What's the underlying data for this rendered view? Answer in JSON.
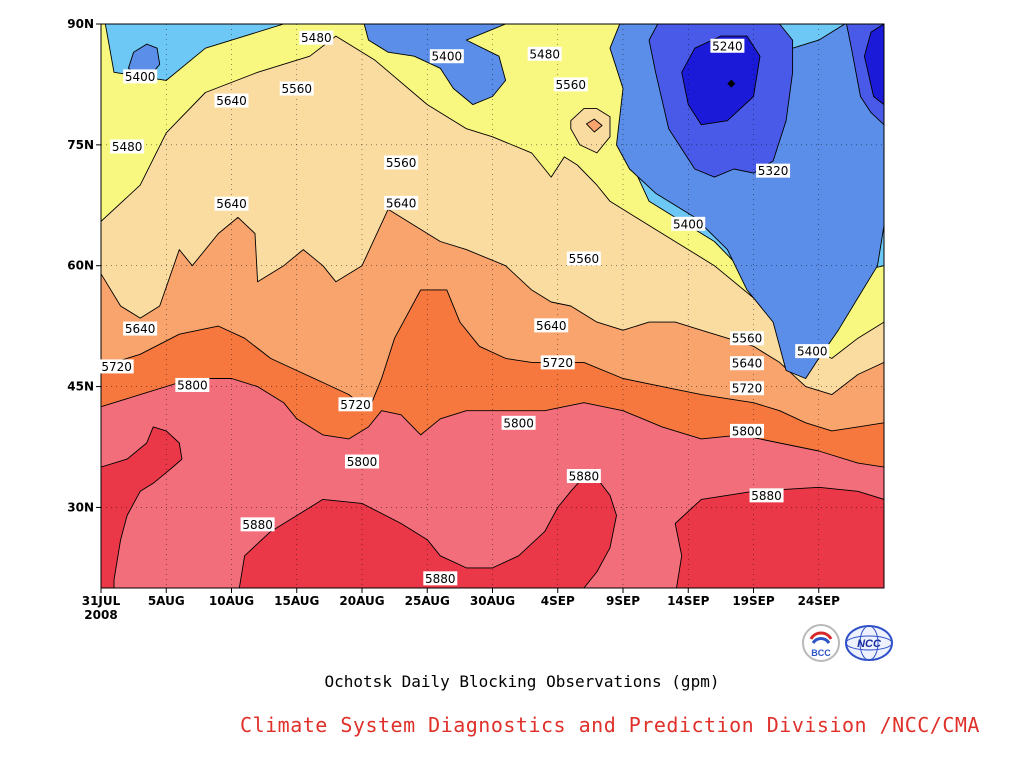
{
  "chart_data": {
    "type": "contour",
    "title": "Ochotsk Daily Blocking Observations (gpm)",
    "credit": "Climate System Diagnostics and Prediction Division /NCC/CMA",
    "logos": [
      "BCC",
      "NCC"
    ],
    "x_start": "31JUL 2008",
    "x_end": "29SEP 2008",
    "y_range": [
      "20N",
      "90N"
    ],
    "x_ticks": [
      {
        "label": "31JUL",
        "sub": "2008",
        "day": 0
      },
      {
        "label": "5AUG",
        "day": 5
      },
      {
        "label": "10AUG",
        "day": 10
      },
      {
        "label": "15AUG",
        "day": 15
      },
      {
        "label": "20AUG",
        "day": 20
      },
      {
        "label": "25AUG",
        "day": 25
      },
      {
        "label": "30AUG",
        "day": 30
      },
      {
        "label": "4SEP",
        "day": 35
      },
      {
        "label": "9SEP",
        "day": 40
      },
      {
        "label": "14SEP",
        "day": 45
      },
      {
        "label": "19SEP",
        "day": 50
      },
      {
        "label": "24SEP",
        "day": 55
      }
    ],
    "y_ticks": [
      {
        "label": "30N",
        "lat": 30
      },
      {
        "label": "45N",
        "lat": 45
      },
      {
        "label": "60N",
        "lat": 60
      },
      {
        "label": "75N",
        "lat": 75
      },
      {
        "label": "90N",
        "lat": 90
      }
    ],
    "levels": [
      5240,
      5320,
      5400,
      5480,
      5560,
      5640,
      5720,
      5800,
      5880
    ],
    "colors": {
      "below_5240": "#1a1ad8",
      "5240_5320": "#4a5ae8",
      "5320_5400": "#5a8ee8",
      "5400_5480": "#6ec8f6",
      "5480_5560": "#f8f880",
      "5560_5640": "#fbdca0",
      "5640_5720": "#f8a46c",
      "5720_5800": "#f6783e",
      "5800_5880": "#f26e7a",
      "above_5880": "#ea3848"
    },
    "contour_labels": [
      {
        "text": "5480",
        "day": 16.5,
        "lat": 88.3
      },
      {
        "text": "5400",
        "day": 3.0,
        "lat": 83.5
      },
      {
        "text": "5560",
        "day": 15.0,
        "lat": 82.0
      },
      {
        "text": "5640",
        "day": 10.0,
        "lat": 80.5
      },
      {
        "text": "5480",
        "day": 2.0,
        "lat": 74.8
      },
      {
        "text": "5400",
        "day": 26.5,
        "lat": 86.0
      },
      {
        "text": "5480",
        "day": 34.0,
        "lat": 86.3
      },
      {
        "text": "5560",
        "day": 36.0,
        "lat": 82.5
      },
      {
        "text": "5240",
        "day": 48.0,
        "lat": 87.3
      },
      {
        "text": "5320",
        "day": 51.5,
        "lat": 71.8
      },
      {
        "text": "5560",
        "day": 23.0,
        "lat": 72.8
      },
      {
        "text": "5640",
        "day": 10.0,
        "lat": 67.7
      },
      {
        "text": "5640",
        "day": 23.0,
        "lat": 67.8
      },
      {
        "text": "5400",
        "day": 45.0,
        "lat": 65.2
      },
      {
        "text": "5560",
        "day": 37.0,
        "lat": 60.9
      },
      {
        "text": "5640",
        "day": 3.0,
        "lat": 52.2
      },
      {
        "text": "5640",
        "day": 34.5,
        "lat": 52.6
      },
      {
        "text": "5720",
        "day": 1.2,
        "lat": 47.5
      },
      {
        "text": "5560",
        "day": 49.5,
        "lat": 51.0
      },
      {
        "text": "5400",
        "day": 54.5,
        "lat": 49.4
      },
      {
        "text": "5640",
        "day": 49.5,
        "lat": 47.9
      },
      {
        "text": "5720",
        "day": 35.0,
        "lat": 48.0
      },
      {
        "text": "5800",
        "day": 7.0,
        "lat": 45.2
      },
      {
        "text": "5720",
        "day": 19.5,
        "lat": 42.8
      },
      {
        "text": "5720",
        "day": 49.5,
        "lat": 44.8
      },
      {
        "text": "5800",
        "day": 32.0,
        "lat": 40.5
      },
      {
        "text": "5800",
        "day": 49.5,
        "lat": 39.5
      },
      {
        "text": "5800",
        "day": 20.0,
        "lat": 35.7
      },
      {
        "text": "5880",
        "day": 37.0,
        "lat": 33.9
      },
      {
        "text": "5880",
        "day": 51.0,
        "lat": 31.5
      },
      {
        "text": "5880",
        "day": 12.0,
        "lat": 27.9
      },
      {
        "text": "5880",
        "day": 26.0,
        "lat": 21.2
      }
    ]
  }
}
